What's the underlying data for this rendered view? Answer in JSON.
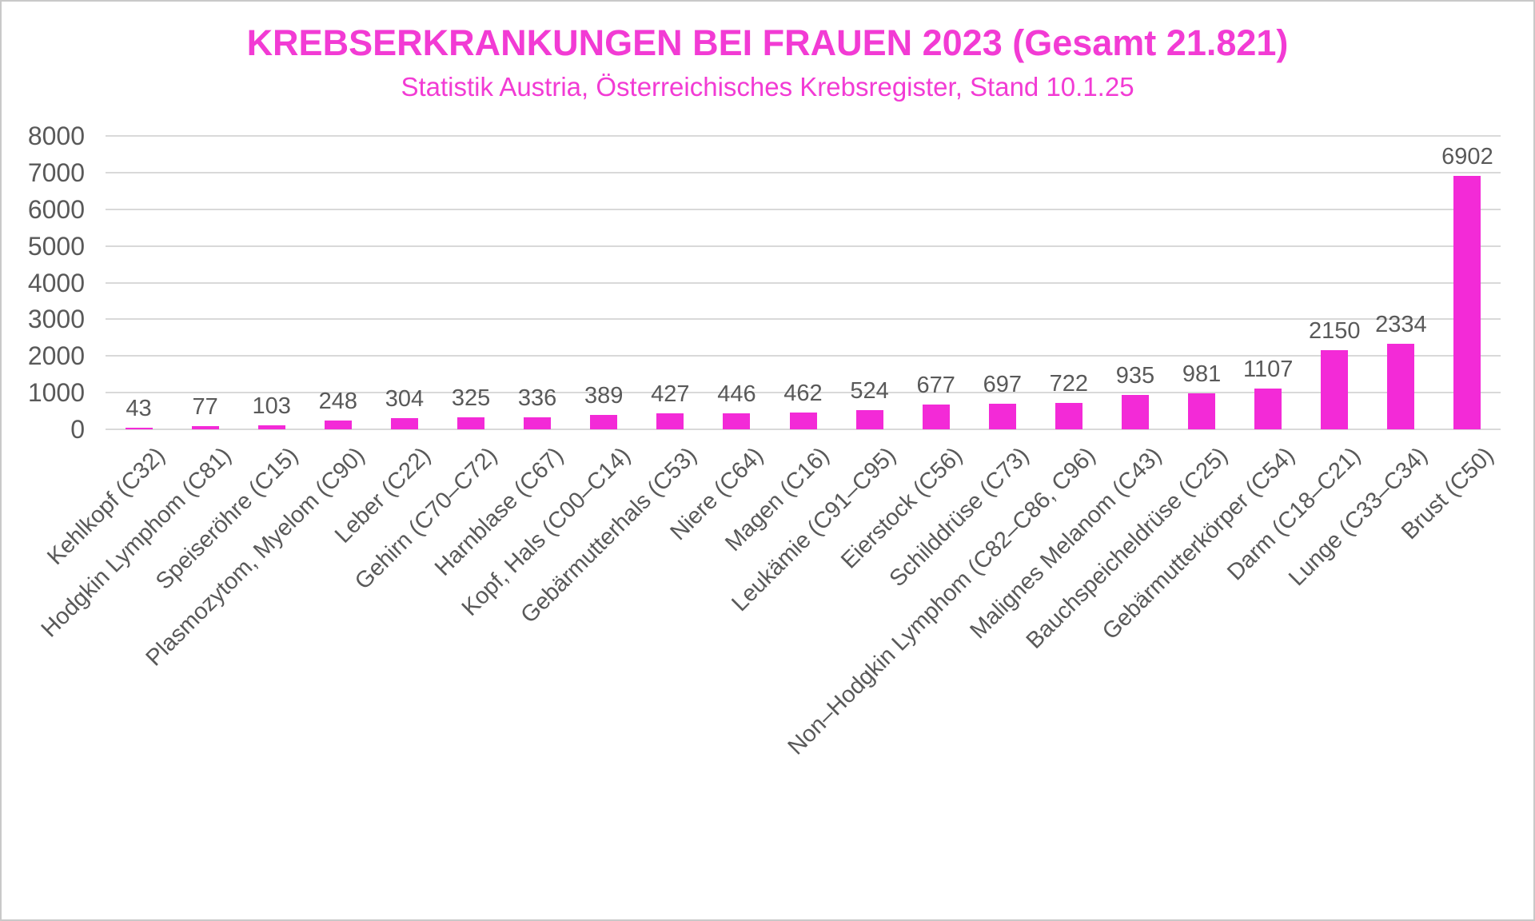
{
  "chart_data": {
    "type": "bar",
    "title": "KREBSERKRANKUNGEN BEI FRAUEN 2023 (Gesamt 21.821)",
    "subtitle": "Statistik Austria, Österreichisches Krebsregister, Stand 10.1.25",
    "categories": [
      "Kehlkopf (C32)",
      "Hodgkin Lymphom (C81)",
      "Speiseröhre (C15)",
      "Plasmozytom, Myelom (C90)",
      "Leber (C22)",
      "Gehirn (C70–C72)",
      "Harnblase (C67)",
      "Kopf, Hals (C00–C14)",
      "Gebärmutterhals (C53)",
      "Niere (C64)",
      "Magen (C16)",
      "Leukämie (C91–C95)",
      "Eierstock (C56)",
      "Schilddrüse (C73)",
      "Non–Hodgkin Lymphom (C82–C86, C96)",
      "Malignes Melanom (C43)",
      "Bauchspeicheldrüse (C25)",
      "Gebärmutterkörper (C54)",
      "Darm (C18–C21)",
      "Lunge (C33–C34)",
      "Brust (C50)"
    ],
    "values": [
      43,
      77,
      103,
      248,
      304,
      325,
      336,
      389,
      427,
      446,
      462,
      524,
      677,
      697,
      722,
      935,
      981,
      1107,
      2150,
      2334,
      6902
    ],
    "xlabel": "",
    "ylabel": "",
    "ylim": [
      0,
      8000
    ],
    "yticks": [
      0,
      1000,
      2000,
      3000,
      4000,
      5000,
      6000,
      7000,
      8000
    ],
    "grid": "horizontal",
    "legend_position": "none",
    "data_labels": "outside-end",
    "colors": {
      "bar": "#f32ad7",
      "title": "#f23bd4",
      "subtitle": "#f23bd4",
      "axis_text": "#595959",
      "gridline": "#d9d9d9",
      "background": "#ffffff",
      "frame_border": "#c9c9c9"
    }
  }
}
